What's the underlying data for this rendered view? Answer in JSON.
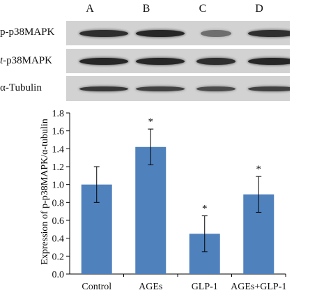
{
  "blot": {
    "lanes": [
      "A",
      "B",
      "C",
      "D"
    ],
    "rows": [
      {
        "label_prefix": "p",
        "label_rest": "-p38MAPK",
        "italic_prefix": false,
        "intensities": [
          0.9,
          0.95,
          0.55,
          0.9
        ]
      },
      {
        "label_prefix": "t",
        "label_rest": "-p38MAPK",
        "italic_prefix": true,
        "intensities": [
          0.95,
          0.95,
          0.9,
          0.95
        ]
      },
      {
        "label_prefix": "α",
        "label_rest": "-Tubulin",
        "italic_prefix": false,
        "intensities": [
          0.85,
          0.8,
          0.75,
          0.8
        ]
      }
    ],
    "panel_bg": "#d2d2d2",
    "band_color": "#1e1e1e"
  },
  "chart_data": {
    "type": "bar",
    "categories": [
      "Control",
      "AGEs",
      "GLP-1",
      "AGEs+GLP-1"
    ],
    "values": [
      1.0,
      1.42,
      0.45,
      0.89
    ],
    "errors": [
      0.2,
      0.2,
      0.2,
      0.2
    ],
    "significance": [
      "",
      "*",
      "*",
      "*"
    ],
    "ylabel": "Expression of p-p38MAPK/α-tubulin",
    "xlabel": "",
    "ylim": [
      0,
      1.8
    ],
    "yticks": [
      "0.0",
      "0.2",
      "0.4",
      "0.6",
      "0.8",
      "1.0",
      "1.2",
      "1.4",
      "1.6",
      "1.8"
    ],
    "bar_color": "#4f81bd",
    "grid": false
  }
}
